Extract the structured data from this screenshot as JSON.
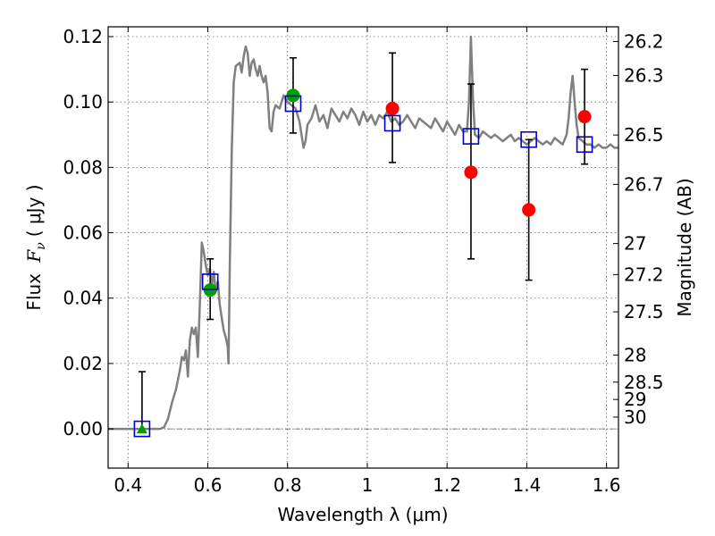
{
  "chart_data": {
    "type": "scatter",
    "xlabel": "Wavelength  λ (μm)",
    "ylabel": "Flux  F_ν  ( μJy )",
    "ylabel_parts": {
      "prefix": "Flux",
      "symbol": "F",
      "subscript": "ν",
      "unit": "( μJy )"
    },
    "y2label": "Magnitude (AB)",
    "xlim": [
      0.35,
      1.63
    ],
    "ylim": [
      -0.012,
      0.123
    ],
    "x_ticks": [
      0.4,
      0.6,
      0.8,
      1.0,
      1.2,
      1.4,
      1.6
    ],
    "x_tick_labels": [
      "0.4",
      "0.6",
      "0.8",
      "1",
      "1.2",
      "1.4",
      "1.6"
    ],
    "y_ticks": [
      0.0,
      0.02,
      0.04,
      0.06,
      0.08,
      0.1,
      0.12
    ],
    "y_tick_labels": [
      "0.00",
      "0.02",
      "0.04",
      "0.06",
      "0.08",
      "0.10",
      "0.12"
    ],
    "mag_ticks": [
      {
        "label": "26.2",
        "flux": 0.1185
      },
      {
        "label": "26.3",
        "flux": 0.1081
      },
      {
        "label": "26.5",
        "flux": 0.0899
      },
      {
        "label": "26.7",
        "flux": 0.0748
      },
      {
        "label": "27",
        "flux": 0.0567
      },
      {
        "label": "27.2",
        "flux": 0.0472
      },
      {
        "label": "27.5",
        "flux": 0.0358
      },
      {
        "label": "28",
        "flux": 0.0226
      },
      {
        "label": "28.5",
        "flux": 0.0143
      },
      {
        "label": "29",
        "flux": 0.009
      },
      {
        "label": "30",
        "flux": 0.0036
      }
    ],
    "grid": true,
    "zero_line": true,
    "colors": {
      "spectrum": "#808080",
      "green": "#00a000",
      "red": "#ff0000",
      "model_box": "#0000cc",
      "errorbar": "#000000"
    },
    "series": [
      {
        "kind": "spectrum",
        "points": [
          [
            0.35,
            0.0
          ],
          [
            0.48,
            0.0
          ],
          [
            0.49,
            0.0005
          ],
          [
            0.5,
            0.003
          ],
          [
            0.51,
            0.008
          ],
          [
            0.52,
            0.012
          ],
          [
            0.53,
            0.018
          ],
          [
            0.535,
            0.022
          ],
          [
            0.54,
            0.021
          ],
          [
            0.545,
            0.024
          ],
          [
            0.55,
            0.016
          ],
          [
            0.555,
            0.027
          ],
          [
            0.56,
            0.031
          ],
          [
            0.565,
            0.029
          ],
          [
            0.57,
            0.031
          ],
          [
            0.575,
            0.022
          ],
          [
            0.58,
            0.038
          ],
          [
            0.585,
            0.057
          ],
          [
            0.59,
            0.054
          ],
          [
            0.595,
            0.05
          ],
          [
            0.6,
            0.047
          ],
          [
            0.605,
            0.049
          ],
          [
            0.61,
            0.044
          ],
          [
            0.615,
            0.048
          ],
          [
            0.62,
            0.042
          ],
          [
            0.625,
            0.045
          ],
          [
            0.63,
            0.038
          ],
          [
            0.635,
            0.034
          ],
          [
            0.64,
            0.03
          ],
          [
            0.645,
            0.028
          ],
          [
            0.65,
            0.025
          ],
          [
            0.652,
            0.02
          ],
          [
            0.655,
            0.05
          ],
          [
            0.66,
            0.085
          ],
          [
            0.665,
            0.106
          ],
          [
            0.67,
            0.111
          ],
          [
            0.68,
            0.112
          ],
          [
            0.685,
            0.109
          ],
          [
            0.69,
            0.114
          ],
          [
            0.695,
            0.117
          ],
          [
            0.7,
            0.115
          ],
          [
            0.705,
            0.108
          ],
          [
            0.71,
            0.112
          ],
          [
            0.715,
            0.113
          ],
          [
            0.72,
            0.11
          ],
          [
            0.725,
            0.108
          ],
          [
            0.73,
            0.111
          ],
          [
            0.735,
            0.108
          ],
          [
            0.74,
            0.106
          ],
          [
            0.745,
            0.108
          ],
          [
            0.75,
            0.103
          ],
          [
            0.755,
            0.092
          ],
          [
            0.76,
            0.091
          ],
          [
            0.765,
            0.097
          ],
          [
            0.77,
            0.099
          ],
          [
            0.78,
            0.098
          ],
          [
            0.79,
            0.102
          ],
          [
            0.8,
            0.1
          ],
          [
            0.81,
            0.099
          ],
          [
            0.82,
            0.098
          ],
          [
            0.83,
            0.094
          ],
          [
            0.84,
            0.086
          ],
          [
            0.845,
            0.088
          ],
          [
            0.85,
            0.093
          ],
          [
            0.86,
            0.095
          ],
          [
            0.87,
            0.099
          ],
          [
            0.88,
            0.094
          ],
          [
            0.89,
            0.096
          ],
          [
            0.9,
            0.092
          ],
          [
            0.91,
            0.098
          ],
          [
            0.92,
            0.096
          ],
          [
            0.93,
            0.094
          ],
          [
            0.94,
            0.097
          ],
          [
            0.95,
            0.095
          ],
          [
            0.96,
            0.098
          ],
          [
            0.97,
            0.096
          ],
          [
            0.98,
            0.093
          ],
          [
            0.99,
            0.097
          ],
          [
            1.0,
            0.094
          ],
          [
            1.01,
            0.096
          ],
          [
            1.02,
            0.093
          ],
          [
            1.03,
            0.096
          ],
          [
            1.04,
            0.095
          ],
          [
            1.05,
            0.097
          ],
          [
            1.06,
            0.094
          ],
          [
            1.07,
            0.095
          ],
          [
            1.08,
            0.093
          ],
          [
            1.09,
            0.094
          ],
          [
            1.1,
            0.096
          ],
          [
            1.11,
            0.094
          ],
          [
            1.12,
            0.092
          ],
          [
            1.13,
            0.095
          ],
          [
            1.14,
            0.094
          ],
          [
            1.15,
            0.093
          ],
          [
            1.16,
            0.092
          ],
          [
            1.17,
            0.095
          ],
          [
            1.18,
            0.093
          ],
          [
            1.19,
            0.091
          ],
          [
            1.2,
            0.094
          ],
          [
            1.21,
            0.092
          ],
          [
            1.22,
            0.09
          ],
          [
            1.23,
            0.093
          ],
          [
            1.24,
            0.091
          ],
          [
            1.25,
            0.091
          ],
          [
            1.255,
            0.1
          ],
          [
            1.26,
            0.12
          ],
          [
            1.265,
            0.101
          ],
          [
            1.27,
            0.09
          ],
          [
            1.28,
            0.089
          ],
          [
            1.29,
            0.091
          ],
          [
            1.3,
            0.09
          ],
          [
            1.31,
            0.089
          ],
          [
            1.32,
            0.09
          ],
          [
            1.33,
            0.089
          ],
          [
            1.34,
            0.088
          ],
          [
            1.35,
            0.089
          ],
          [
            1.36,
            0.09
          ],
          [
            1.37,
            0.088
          ],
          [
            1.38,
            0.089
          ],
          [
            1.39,
            0.088
          ],
          [
            1.4,
            0.087
          ],
          [
            1.41,
            0.088
          ],
          [
            1.42,
            0.089
          ],
          [
            1.43,
            0.088
          ],
          [
            1.44,
            0.087
          ],
          [
            1.45,
            0.088
          ],
          [
            1.46,
            0.087
          ],
          [
            1.47,
            0.089
          ],
          [
            1.48,
            0.088
          ],
          [
            1.49,
            0.087
          ],
          [
            1.5,
            0.09
          ],
          [
            1.505,
            0.095
          ],
          [
            1.51,
            0.103
          ],
          [
            1.515,
            0.108
          ],
          [
            1.52,
            0.1
          ],
          [
            1.525,
            0.093
          ],
          [
            1.53,
            0.089
          ],
          [
            1.54,
            0.088
          ],
          [
            1.55,
            0.087
          ],
          [
            1.56,
            0.087
          ],
          [
            1.57,
            0.086
          ],
          [
            1.58,
            0.087
          ],
          [
            1.59,
            0.086
          ],
          [
            1.6,
            0.086
          ],
          [
            1.61,
            0.087
          ],
          [
            1.62,
            0.086
          ],
          [
            1.63,
            0.086
          ]
        ]
      },
      {
        "kind": "observed",
        "points": [
          {
            "x": 0.435,
            "y": 0.0,
            "err_low": 0.0,
            "err_high": 0.0175,
            "color": "green",
            "marker": "triangle"
          },
          {
            "x": 0.606,
            "y": 0.0425,
            "err_low": 0.0335,
            "err_high": 0.052,
            "color": "green",
            "marker": "circle"
          },
          {
            "x": 0.814,
            "y": 0.102,
            "err_low": 0.0905,
            "err_high": 0.1135,
            "color": "green",
            "marker": "circle"
          },
          {
            "x": 1.063,
            "y": 0.098,
            "err_low": 0.0815,
            "err_high": 0.115,
            "color": "red",
            "marker": "circle"
          },
          {
            "x": 1.26,
            "y": 0.0785,
            "err_low": 0.052,
            "err_high": 0.1055,
            "color": "red",
            "marker": "circle"
          },
          {
            "x": 1.405,
            "y": 0.067,
            "err_low": 0.0455,
            "err_high": 0.0885,
            "color": "red",
            "marker": "circle"
          },
          {
            "x": 1.545,
            "y": 0.0955,
            "err_low": 0.081,
            "err_high": 0.11,
            "color": "red",
            "marker": "circle"
          }
        ]
      },
      {
        "kind": "model",
        "points": [
          {
            "x": 0.435,
            "y": 0.0
          },
          {
            "x": 0.606,
            "y": 0.045
          },
          {
            "x": 0.814,
            "y": 0.0995
          },
          {
            "x": 1.063,
            "y": 0.0935
          },
          {
            "x": 1.26,
            "y": 0.0895
          },
          {
            "x": 1.405,
            "y": 0.0885
          },
          {
            "x": 1.545,
            "y": 0.087
          }
        ]
      }
    ]
  }
}
